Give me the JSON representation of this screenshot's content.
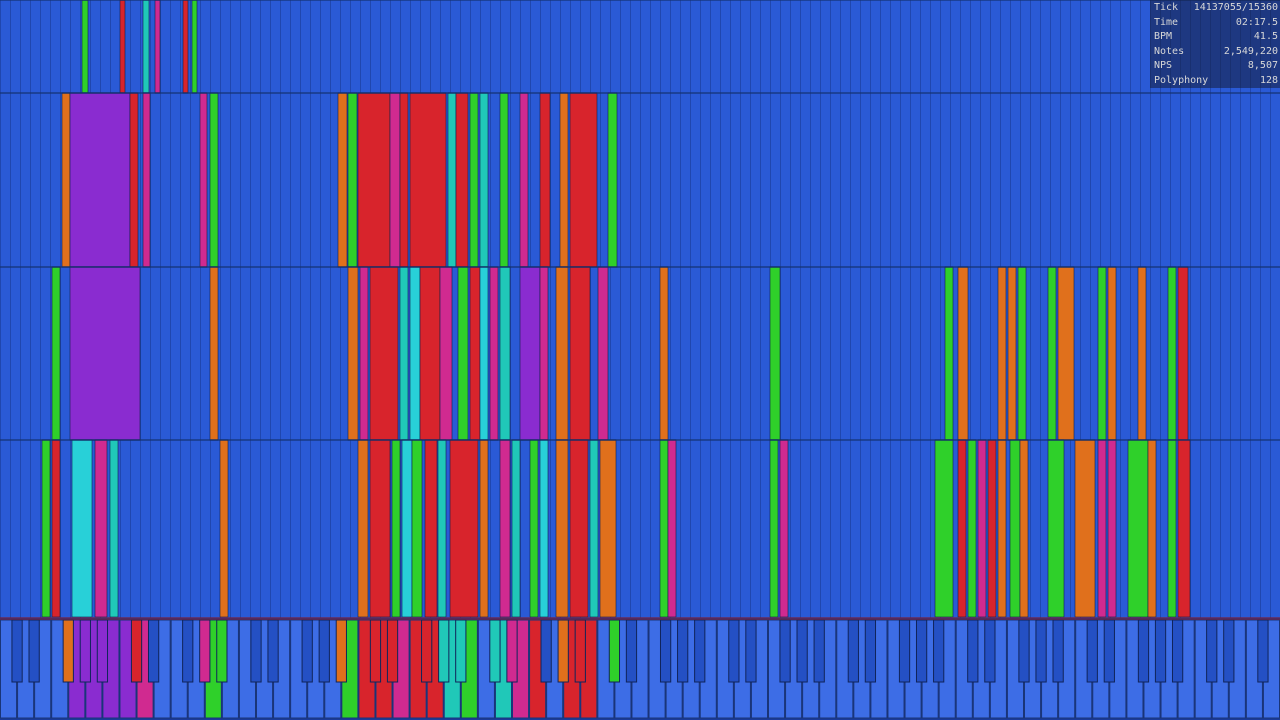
{
  "stats": [
    {
      "label": "Tick",
      "value": "14137055/15360"
    },
    {
      "label": "Time",
      "value": "02:17.5"
    },
    {
      "label": "BPM",
      "value": "41.5"
    },
    {
      "label": "Notes",
      "value": "2,549,220"
    },
    {
      "label": "NPS",
      "value": "8,507"
    },
    {
      "label": "Polyphony",
      "value": "128"
    }
  ]
}
